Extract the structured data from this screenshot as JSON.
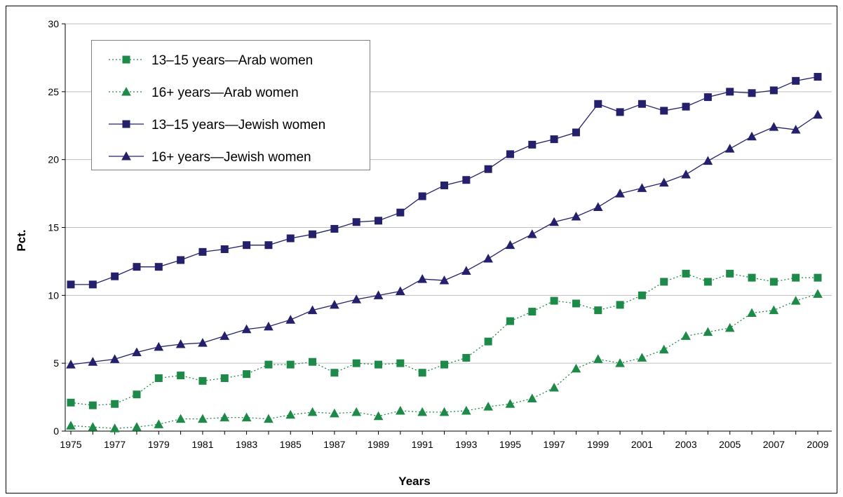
{
  "chart_data": {
    "type": "line",
    "title": "",
    "xlabel": "Years",
    "ylabel": "Pct.",
    "ylim": [
      0,
      30
    ],
    "yticks": [
      "0",
      "5",
      "10",
      "15",
      "20",
      "25",
      "30"
    ],
    "xlim": [
      1975,
      2009
    ],
    "xticks": [
      "1975",
      "1977",
      "1979",
      "1981",
      "1983",
      "1985",
      "1987",
      "1989",
      "1991",
      "1993",
      "1995",
      "1997",
      "1999",
      "2001",
      "2003",
      "2005",
      "2007",
      "2009"
    ],
    "grid": "horizontal",
    "legend_position": "top-left",
    "x": [
      1975,
      1976,
      1977,
      1978,
      1979,
      1980,
      1981,
      1982,
      1983,
      1984,
      1985,
      1986,
      1987,
      1988,
      1989,
      1990,
      1991,
      1992,
      1993,
      1994,
      1995,
      1996,
      1997,
      1998,
      1999,
      2000,
      2001,
      2002,
      2003,
      2004,
      2005,
      2006,
      2007,
      2008,
      2009
    ],
    "series": [
      {
        "name": "13–15 years—Arab women",
        "color": "#1e8a49",
        "marker": "square",
        "line": "dotted",
        "values": [
          2.1,
          1.9,
          2.0,
          2.7,
          3.9,
          4.1,
          3.7,
          3.9,
          4.2,
          4.9,
          4.9,
          5.1,
          4.3,
          5.0,
          4.9,
          5.0,
          4.3,
          4.9,
          5.4,
          6.6,
          8.1,
          8.8,
          9.6,
          9.4,
          8.9,
          9.3,
          10.0,
          11.0,
          11.6,
          11.0,
          11.6,
          11.3,
          11.0,
          11.3,
          11.3
        ]
      },
      {
        "name": "16+ years—Arab women",
        "color": "#1e8a49",
        "marker": "triangle",
        "line": "dotted",
        "values": [
          0.4,
          0.3,
          0.2,
          0.3,
          0.5,
          0.9,
          0.9,
          1.0,
          1.0,
          0.9,
          1.2,
          1.4,
          1.3,
          1.4,
          1.1,
          1.5,
          1.4,
          1.4,
          1.5,
          1.8,
          2.0,
          2.4,
          3.2,
          4.6,
          5.3,
          5.0,
          5.4,
          6.0,
          7.0,
          7.3,
          7.6,
          8.7,
          8.9,
          9.6,
          10.1
        ]
      },
      {
        "name": "13–15 years—Jewish women",
        "color": "#24206b",
        "marker": "square",
        "line": "solid",
        "values": [
          10.8,
          10.8,
          11.4,
          12.1,
          12.1,
          12.6,
          13.2,
          13.4,
          13.7,
          13.7,
          14.2,
          14.5,
          14.9,
          15.4,
          15.5,
          16.1,
          17.3,
          18.1,
          18.5,
          19.3,
          20.4,
          21.1,
          21.5,
          22.0,
          24.1,
          23.5,
          24.1,
          23.6,
          23.9,
          24.6,
          25.0,
          24.9,
          25.1,
          25.8,
          26.1
        ]
      },
      {
        "name": "16+ years—Jewish women",
        "color": "#24206b",
        "marker": "triangle",
        "line": "solid",
        "values": [
          4.9,
          5.1,
          5.3,
          5.8,
          6.2,
          6.4,
          6.5,
          7.0,
          7.5,
          7.7,
          8.2,
          8.9,
          9.3,
          9.7,
          10.0,
          10.3,
          11.2,
          11.1,
          11.8,
          12.7,
          13.7,
          14.5,
          15.4,
          15.8,
          16.5,
          17.5,
          17.9,
          18.3,
          18.9,
          19.9,
          20.8,
          21.7,
          22.4,
          22.2,
          23.3
        ]
      }
    ]
  }
}
